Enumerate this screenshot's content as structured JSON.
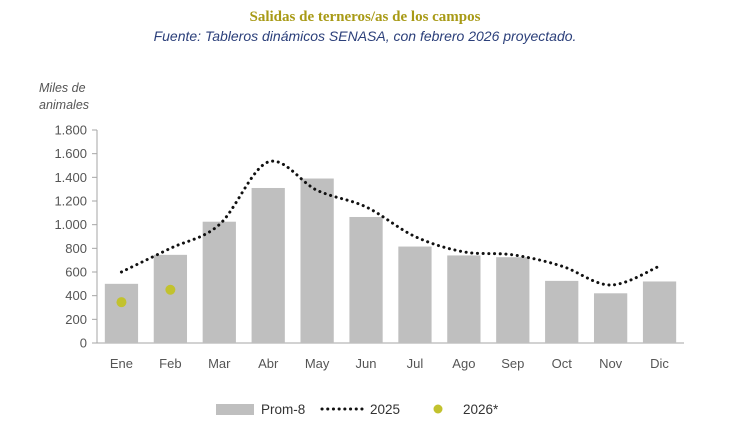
{
  "chart_data": {
    "type": "bar",
    "title": "Salidas de terneros/as de los campos",
    "subtitle": "Fuente: Tableros dinámicos SENASA, con febrero 2026 proyectado.",
    "ylabel_lines": [
      "Miles de",
      "animales"
    ],
    "xlabel": "",
    "categories": [
      "Ene",
      "Feb",
      "Mar",
      "Abr",
      "May",
      "Jun",
      "Jul",
      "Ago",
      "Sep",
      "Oct",
      "Nov",
      "Dic"
    ],
    "ylim": [
      0,
      1800
    ],
    "yticks": [
      0,
      200,
      400,
      600,
      800,
      1000,
      1200,
      1400,
      1600,
      1800
    ],
    "ytick_labels": [
      "0",
      "200",
      "400",
      "600",
      "800",
      "1.000",
      "1.200",
      "1.400",
      "1.600",
      "1.800"
    ],
    "grid": false,
    "legend_position": "bottom",
    "series": [
      {
        "name": "Prom-8",
        "kind": "bar",
        "color": "#bfbfbf",
        "values": [
          500,
          745,
          1025,
          1310,
          1390,
          1065,
          815,
          740,
          725,
          525,
          420,
          520
        ]
      },
      {
        "name": "2025",
        "kind": "line-dotted",
        "color": "#111111",
        "values": [
          600,
          800,
          1000,
          1530,
          1290,
          1150,
          900,
          770,
          745,
          650,
          490,
          650
        ]
      },
      {
        "name": "2026*",
        "kind": "point",
        "color": "#c2c22e",
        "values": [
          345,
          450,
          null,
          null,
          null,
          null,
          null,
          null,
          null,
          null,
          null,
          null
        ]
      }
    ]
  }
}
